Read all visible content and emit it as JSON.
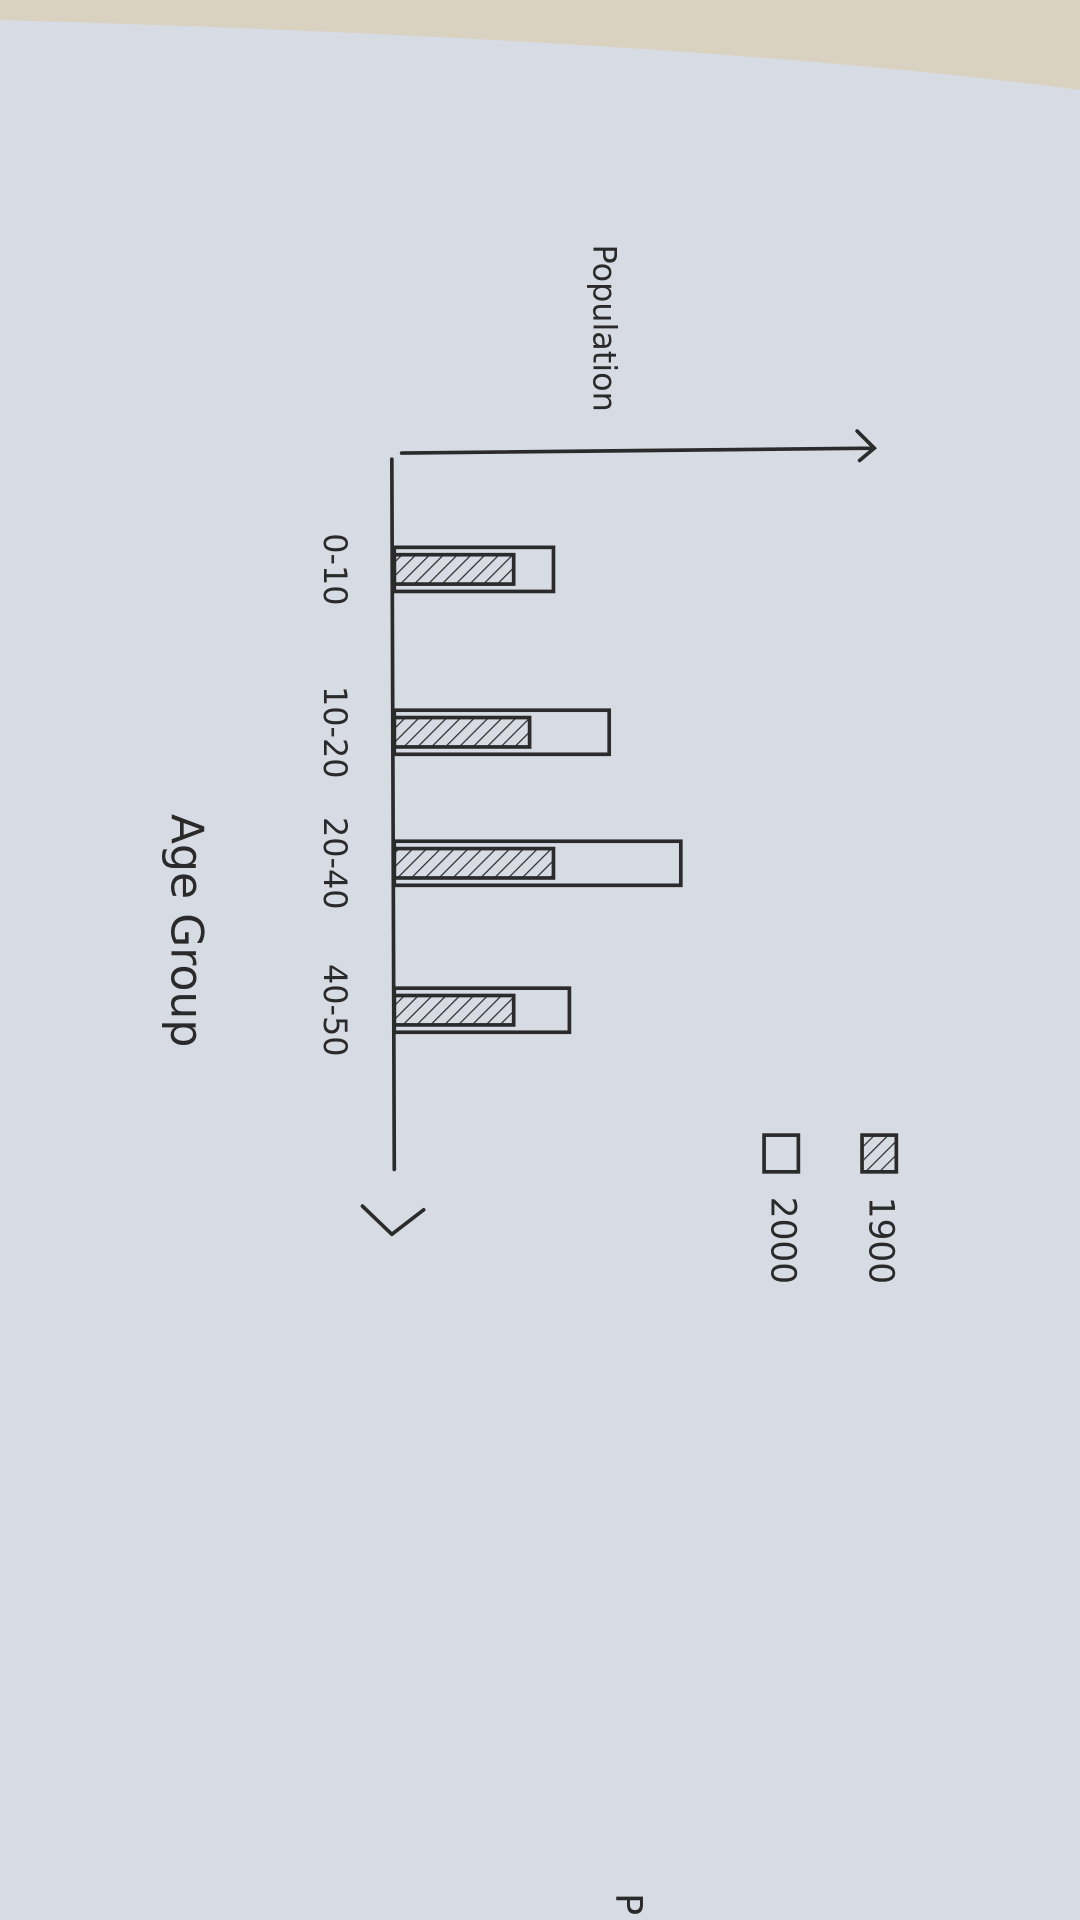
{
  "chart_data": {
    "type": "bar",
    "x_label": "Age Group",
    "y_label": "Population",
    "categories": [
      "0-10",
      "10-20",
      "20-40",
      "40-50"
    ],
    "series": [
      {
        "name": "1900",
        "color": "#2b2b2b",
        "hatch": true,
        "values": [
          75,
          85,
          100,
          75
        ]
      },
      {
        "name": "2000",
        "color": "#2b2b2b",
        "hatch": false,
        "values": [
          100,
          135,
          180,
          110
        ]
      }
    ],
    "ylim": [
      0,
      300
    ],
    "grid": false,
    "edge_text": "P"
  }
}
